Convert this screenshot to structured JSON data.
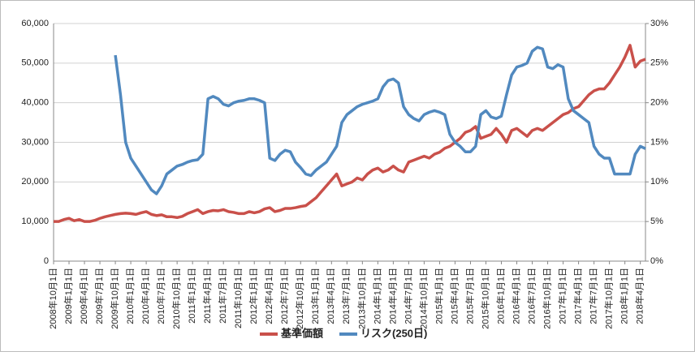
{
  "chart_data": {
    "type": "line",
    "categories": [
      "2008年10月1日",
      null,
      null,
      "2009年1月1日",
      null,
      null,
      "2009年4月1日",
      null,
      null,
      "2009年7月1日",
      null,
      null,
      "2009年10月1日",
      null,
      null,
      "2010年1月1日",
      null,
      null,
      "2010年4月1日",
      null,
      null,
      "2010年7月1日",
      null,
      null,
      "2010年10月1日",
      null,
      null,
      "2011年1月1日",
      null,
      null,
      "2011年4月1日",
      null,
      null,
      "2011年7月1日",
      null,
      null,
      "2011年10月1日",
      null,
      null,
      "2012年1月1日",
      null,
      null,
      "2012年4月1日",
      null,
      null,
      "2012年7月1日",
      null,
      null,
      "2012年10月1日",
      null,
      null,
      "2013年1月1日",
      null,
      null,
      "2013年4月1日",
      null,
      null,
      "2013年7月1日",
      null,
      null,
      "2013年10月1日",
      null,
      null,
      "2014年1月1日",
      null,
      null,
      "2014年4月1日",
      null,
      null,
      "2014年7月1日",
      null,
      null,
      "2014年10月1日",
      null,
      null,
      "2015年1月1日",
      null,
      null,
      "2015年4月1日",
      null,
      null,
      "2015年7月1日",
      null,
      null,
      "2015年10月1日",
      null,
      null,
      "2016年1月1日",
      null,
      null,
      "2016年4月1日",
      null,
      null,
      "2016年7月1日",
      null,
      null,
      "2016年10月1日",
      null,
      null,
      "2017年1月1日",
      null,
      null,
      "2017年4月1日",
      null,
      null,
      "2017年7月1日",
      null,
      null,
      "2017年10月1日",
      null,
      null,
      "2018年1月1日",
      null,
      null,
      "2018年4月1日",
      null
    ],
    "series": [
      {
        "name": "基準価額",
        "color": "#c9504a",
        "values": [
          10000,
          10000,
          10500,
          10800,
          10200,
          10500,
          10000,
          10000,
          10300,
          10800,
          11200,
          11500,
          11800,
          12000,
          12100,
          12000,
          11800,
          12200,
          12500,
          11800,
          11500,
          11700,
          11200,
          11200,
          11000,
          11300,
          12000,
          12500,
          13000,
          12000,
          12500,
          12800,
          12700,
          13000,
          12500,
          12300,
          12000,
          12000,
          12500,
          12200,
          12500,
          13200,
          13500,
          12500,
          12800,
          13300,
          13300,
          13500,
          13800,
          14000,
          15000,
          16000,
          17500,
          19000,
          20500,
          22000,
          19000,
          19500,
          20000,
          21000,
          20500,
          22000,
          23000,
          23500,
          22500,
          23000,
          24000,
          23000,
          22500,
          25000,
          25500,
          26000,
          26500,
          26000,
          27000,
          27500,
          28500,
          29000,
          30000,
          31000,
          32500,
          33000,
          34000,
          31000,
          31500,
          32000,
          33500,
          32000,
          30000,
          33000,
          33500,
          32500,
          31500,
          33000,
          33500,
          33000,
          34000,
          35000,
          36000,
          37000,
          37500,
          38500,
          39000,
          40500,
          42000,
          43000,
          43500,
          43500,
          45000,
          47000,
          49000,
          51500,
          54500,
          49000,
          50500,
          51000
        ]
      },
      {
        "name": "リスク(250日)",
        "color": "#5189bf",
        "axis": "y2",
        "values": [
          null,
          null,
          null,
          null,
          null,
          null,
          null,
          null,
          null,
          null,
          null,
          null,
          26,
          21,
          15,
          13,
          12,
          11,
          10,
          9,
          8.5,
          9.5,
          11,
          11.5,
          12,
          12.2,
          12.5,
          12.7,
          12.8,
          13.5,
          20.5,
          20.8,
          20.5,
          19.8,
          19.6,
          20,
          20.2,
          20.3,
          20.5,
          20.5,
          20.3,
          20,
          13,
          12.7,
          13.5,
          14,
          13.8,
          12.5,
          11.8,
          11,
          10.8,
          11.5,
          12,
          12.5,
          13.5,
          14.5,
          17.5,
          18.5,
          19,
          19.5,
          19.8,
          20,
          20.2,
          20.5,
          22,
          22.8,
          23,
          22.5,
          19.5,
          18.5,
          18,
          17.7,
          18.5,
          18.8,
          19,
          18.8,
          18.5,
          16,
          15,
          14.5,
          13.8,
          13.8,
          14.5,
          18.5,
          19,
          18.2,
          18,
          18.3,
          21,
          23.5,
          24.5,
          24.7,
          25,
          26.5,
          27,
          26.8,
          24.5,
          24.3,
          24.8,
          24.5,
          20.5,
          19,
          18.5,
          18,
          17.5,
          14.5,
          13.5,
          13,
          13,
          11,
          11,
          11,
          11,
          13.5,
          14.5,
          14.2
        ]
      }
    ],
    "ylim": [
      0,
      60000
    ],
    "yticks": [
      0,
      {
        "value": 10000,
        "label": "10,000"
      },
      {
        "value": 20000,
        "label": "20,000"
      },
      {
        "value": 30000,
        "label": "30,000"
      },
      {
        "value": 40000,
        "label": "40,000"
      },
      {
        "value": 50000,
        "label": "50,000"
      },
      {
        "value": 60000,
        "label": "60,000"
      }
    ],
    "y2lim": [
      0,
      30
    ],
    "y2ticks": [
      {
        "value": 0,
        "label": "0%"
      },
      {
        "value": 5,
        "label": "5%"
      },
      {
        "value": 10,
        "label": "10%"
      },
      {
        "value": 15,
        "label": "15%"
      },
      {
        "value": 20,
        "label": "20%"
      },
      {
        "value": 25,
        "label": "25%"
      },
      {
        "value": 30,
        "label": "30%"
      }
    ],
    "grid": true,
    "legend": "bottom"
  }
}
